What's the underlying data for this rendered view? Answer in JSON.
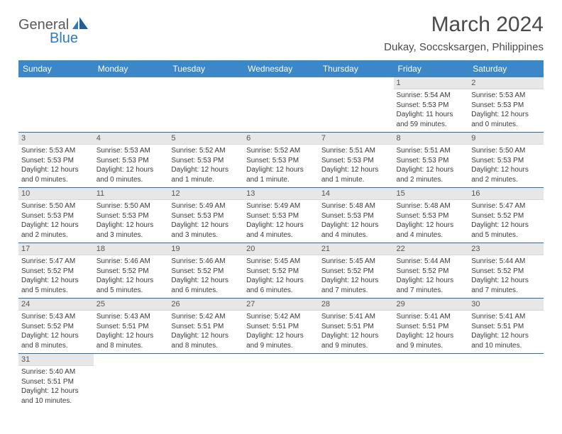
{
  "logo": {
    "part1": "General",
    "part2": "Blue"
  },
  "title": "March 2024",
  "location": "Dukay, Soccsksargen, Philippines",
  "colors": {
    "header_bg": "#3b87c8",
    "header_text": "#ffffff",
    "daynum_bg": "#e7e7e7",
    "row_border": "#2e6da4",
    "logo_gray": "#58595b",
    "logo_blue": "#2f7bbf"
  },
  "weekdays": [
    "Sunday",
    "Monday",
    "Tuesday",
    "Wednesday",
    "Thursday",
    "Friday",
    "Saturday"
  ],
  "weeks": [
    [
      null,
      null,
      null,
      null,
      null,
      {
        "n": "1",
        "sunrise": "5:54 AM",
        "sunset": "5:53 PM",
        "daylight": "11 hours and 59 minutes."
      },
      {
        "n": "2",
        "sunrise": "5:53 AM",
        "sunset": "5:53 PM",
        "daylight": "12 hours and 0 minutes."
      }
    ],
    [
      {
        "n": "3",
        "sunrise": "5:53 AM",
        "sunset": "5:53 PM",
        "daylight": "12 hours and 0 minutes."
      },
      {
        "n": "4",
        "sunrise": "5:53 AM",
        "sunset": "5:53 PM",
        "daylight": "12 hours and 0 minutes."
      },
      {
        "n": "5",
        "sunrise": "5:52 AM",
        "sunset": "5:53 PM",
        "daylight": "12 hours and 1 minute."
      },
      {
        "n": "6",
        "sunrise": "5:52 AM",
        "sunset": "5:53 PM",
        "daylight": "12 hours and 1 minute."
      },
      {
        "n": "7",
        "sunrise": "5:51 AM",
        "sunset": "5:53 PM",
        "daylight": "12 hours and 1 minute."
      },
      {
        "n": "8",
        "sunrise": "5:51 AM",
        "sunset": "5:53 PM",
        "daylight": "12 hours and 2 minutes."
      },
      {
        "n": "9",
        "sunrise": "5:50 AM",
        "sunset": "5:53 PM",
        "daylight": "12 hours and 2 minutes."
      }
    ],
    [
      {
        "n": "10",
        "sunrise": "5:50 AM",
        "sunset": "5:53 PM",
        "daylight": "12 hours and 2 minutes."
      },
      {
        "n": "11",
        "sunrise": "5:50 AM",
        "sunset": "5:53 PM",
        "daylight": "12 hours and 3 minutes."
      },
      {
        "n": "12",
        "sunrise": "5:49 AM",
        "sunset": "5:53 PM",
        "daylight": "12 hours and 3 minutes."
      },
      {
        "n": "13",
        "sunrise": "5:49 AM",
        "sunset": "5:53 PM",
        "daylight": "12 hours and 4 minutes."
      },
      {
        "n": "14",
        "sunrise": "5:48 AM",
        "sunset": "5:53 PM",
        "daylight": "12 hours and 4 minutes."
      },
      {
        "n": "15",
        "sunrise": "5:48 AM",
        "sunset": "5:53 PM",
        "daylight": "12 hours and 4 minutes."
      },
      {
        "n": "16",
        "sunrise": "5:47 AM",
        "sunset": "5:52 PM",
        "daylight": "12 hours and 5 minutes."
      }
    ],
    [
      {
        "n": "17",
        "sunrise": "5:47 AM",
        "sunset": "5:52 PM",
        "daylight": "12 hours and 5 minutes."
      },
      {
        "n": "18",
        "sunrise": "5:46 AM",
        "sunset": "5:52 PM",
        "daylight": "12 hours and 5 minutes."
      },
      {
        "n": "19",
        "sunrise": "5:46 AM",
        "sunset": "5:52 PM",
        "daylight": "12 hours and 6 minutes."
      },
      {
        "n": "20",
        "sunrise": "5:45 AM",
        "sunset": "5:52 PM",
        "daylight": "12 hours and 6 minutes."
      },
      {
        "n": "21",
        "sunrise": "5:45 AM",
        "sunset": "5:52 PM",
        "daylight": "12 hours and 7 minutes."
      },
      {
        "n": "22",
        "sunrise": "5:44 AM",
        "sunset": "5:52 PM",
        "daylight": "12 hours and 7 minutes."
      },
      {
        "n": "23",
        "sunrise": "5:44 AM",
        "sunset": "5:52 PM",
        "daylight": "12 hours and 7 minutes."
      }
    ],
    [
      {
        "n": "24",
        "sunrise": "5:43 AM",
        "sunset": "5:52 PM",
        "daylight": "12 hours and 8 minutes."
      },
      {
        "n": "25",
        "sunrise": "5:43 AM",
        "sunset": "5:51 PM",
        "daylight": "12 hours and 8 minutes."
      },
      {
        "n": "26",
        "sunrise": "5:42 AM",
        "sunset": "5:51 PM",
        "daylight": "12 hours and 8 minutes."
      },
      {
        "n": "27",
        "sunrise": "5:42 AM",
        "sunset": "5:51 PM",
        "daylight": "12 hours and 9 minutes."
      },
      {
        "n": "28",
        "sunrise": "5:41 AM",
        "sunset": "5:51 PM",
        "daylight": "12 hours and 9 minutes."
      },
      {
        "n": "29",
        "sunrise": "5:41 AM",
        "sunset": "5:51 PM",
        "daylight": "12 hours and 9 minutes."
      },
      {
        "n": "30",
        "sunrise": "5:41 AM",
        "sunset": "5:51 PM",
        "daylight": "12 hours and 10 minutes."
      }
    ],
    [
      {
        "n": "31",
        "sunrise": "5:40 AM",
        "sunset": "5:51 PM",
        "daylight": "12 hours and 10 minutes."
      },
      null,
      null,
      null,
      null,
      null,
      null
    ]
  ],
  "labels": {
    "sunrise": "Sunrise:",
    "sunset": "Sunset:",
    "daylight": "Daylight:"
  }
}
